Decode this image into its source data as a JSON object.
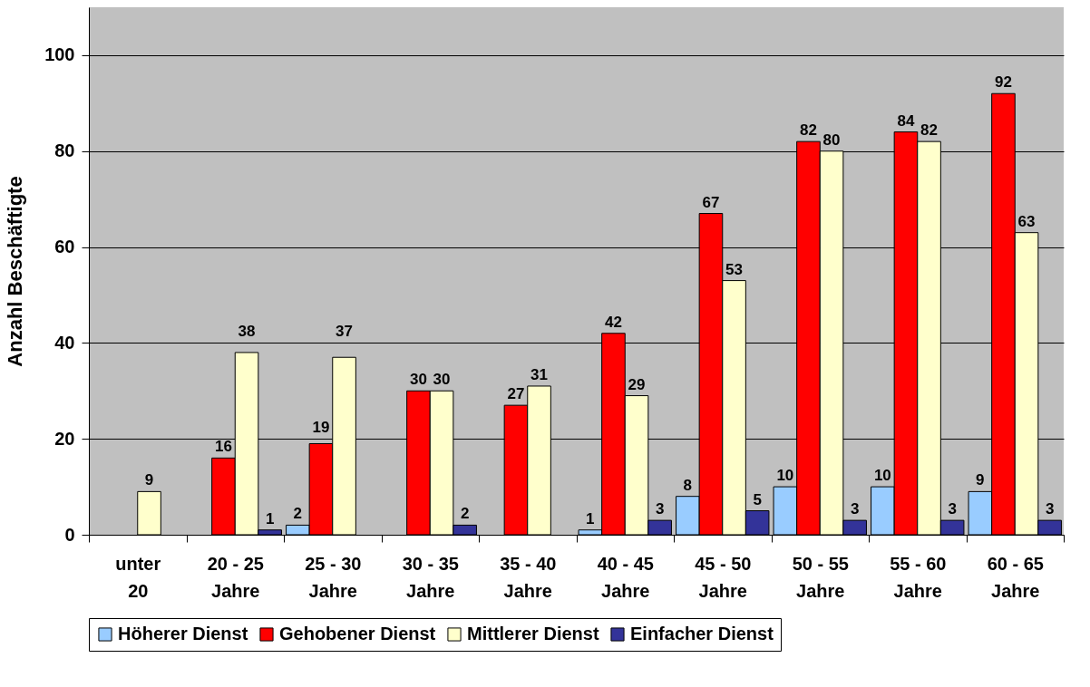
{
  "chart_data": {
    "type": "bar",
    "ylabel": "Anzahl Beschäftigte",
    "categories": [
      "unter 20",
      "20 - 25 Jahre",
      "25 - 30 Jahre",
      "30 - 35 Jahre",
      "35 - 40 Jahre",
      "40 - 45 Jahre",
      "45 - 50 Jahre",
      "50 - 55 Jahre",
      "55 - 60 Jahre",
      "60 - 65 Jahre"
    ],
    "series": [
      {
        "name": "Höherer Dienst",
        "color": "#99ccff",
        "values": [
          null,
          null,
          2,
          null,
          null,
          1,
          8,
          10,
          10,
          9
        ]
      },
      {
        "name": "Gehobener Dienst",
        "color": "#ff0000",
        "values": [
          null,
          16,
          19,
          30,
          27,
          42,
          67,
          82,
          84,
          92
        ]
      },
      {
        "name": "Mittlerer Dienst",
        "color": "#ffffcc",
        "values": [
          9,
          38,
          37,
          30,
          31,
          29,
          53,
          80,
          82,
          63
        ]
      },
      {
        "name": "Einfacher Dienst",
        "color": "#333399",
        "values": [
          null,
          1,
          null,
          2,
          null,
          3,
          5,
          3,
          3,
          3
        ]
      }
    ],
    "ylim": [
      0,
      110
    ],
    "yticks": [
      0,
      20,
      40,
      60,
      80,
      100
    ],
    "grid": "y",
    "legend": "bottom",
    "data_labels": true
  }
}
